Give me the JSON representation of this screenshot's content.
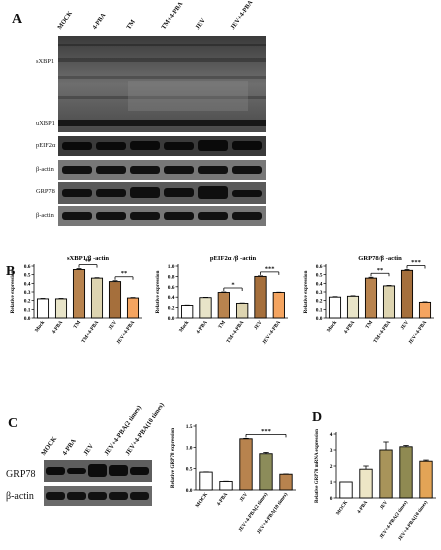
{
  "panels": {
    "A": {
      "letter": "A",
      "lanes": [
        "MOCK",
        "4-PBA",
        "TM",
        "TM+4-PBA",
        "JEV",
        "JEV+4-PBA"
      ],
      "blot_labels": [
        "sXBP1",
        "uXBP1",
        "pEIF2α",
        "β-actin",
        "GRP78",
        "β-actin"
      ]
    },
    "B": {
      "letter": "B"
    },
    "C": {
      "letter": "C",
      "lanes": [
        "MOCK",
        "4-PBA",
        "JEV",
        "JEV+4-PBA(2 times)",
        "JEV+4-PBA(10 times)"
      ],
      "blot_labels": [
        "GRP78",
        "β-actin"
      ]
    },
    "D": {
      "letter": "D"
    }
  },
  "chart_data": [
    {
      "id": "B1",
      "type": "bar",
      "title": "sXBP1/β -actin",
      "ylabel": "Relative expression",
      "categories": [
        "Mock",
        "4-PBA",
        "TM",
        "TM+4-PBA",
        "JEV",
        "JEV+4-PBA"
      ],
      "values": [
        0.22,
        0.22,
        0.56,
        0.46,
        0.42,
        0.23
      ],
      "errors": [
        0.005,
        0.005,
        0.01,
        0.005,
        0.01,
        0.005
      ],
      "ylim": [
        0.0,
        0.6
      ],
      "yticks": [
        "0.0",
        "0.1",
        "0.2",
        "0.3",
        "0.4",
        "0.5",
        "0.6"
      ],
      "significance": [
        {
          "from": 2,
          "to": 3,
          "label": "**"
        },
        {
          "from": 4,
          "to": 5,
          "label": "**"
        }
      ]
    },
    {
      "id": "B2",
      "type": "bar",
      "title": "pEIF2α /β -actin",
      "ylabel": "Relative expression",
      "categories": [
        "Mock",
        "4-PBA",
        "TM",
        "TM+4-PBA",
        "JEV",
        "JEV+4-PBA"
      ],
      "values": [
        0.24,
        0.39,
        0.49,
        0.28,
        0.8,
        0.49
      ],
      "errors": [
        0.005,
        0.005,
        0.01,
        0.005,
        0.01,
        0.005
      ],
      "ylim": [
        0.0,
        1.0
      ],
      "yticks": [
        "0.0",
        "0.2",
        "0.4",
        "0.6",
        "0.8",
        "1.0"
      ],
      "significance": [
        {
          "from": 2,
          "to": 3,
          "label": "*"
        },
        {
          "from": 4,
          "to": 5,
          "label": "***"
        }
      ]
    },
    {
      "id": "B3",
      "type": "bar",
      "title": "GRP78/β -actin",
      "ylabel": "Relative expression",
      "categories": [
        "Mock",
        "4-PBA",
        "TM",
        "TM+4-PBA",
        "JEV",
        "JEV+4-PBA"
      ],
      "values": [
        0.24,
        0.25,
        0.46,
        0.37,
        0.55,
        0.18
      ],
      "errors": [
        0.005,
        0.005,
        0.01,
        0.005,
        0.01,
        0.005
      ],
      "ylim": [
        0.0,
        0.6
      ],
      "yticks": [
        "0.0",
        "0.1",
        "0.2",
        "0.3",
        "0.4",
        "0.5",
        "0.6"
      ],
      "significance": [
        {
          "from": 2,
          "to": 3,
          "label": "**"
        },
        {
          "from": 4,
          "to": 5,
          "label": "***"
        }
      ]
    },
    {
      "id": "C",
      "type": "bar",
      "title": "",
      "ylabel": "Relative GRP78 expression",
      "categories": [
        "MOCK",
        "4-PBA",
        "JEV",
        "JEV+4-PBA(2 times)",
        "JEV+4-PBA(10 times)"
      ],
      "values": [
        0.42,
        0.2,
        1.2,
        0.85,
        0.37
      ],
      "errors": [
        0.005,
        0.005,
        0.01,
        0.03,
        0.005
      ],
      "ylim": [
        0.0,
        1.5
      ],
      "yticks": [
        "0.0",
        "0.5",
        "1.0",
        "1.5"
      ],
      "significance": [
        {
          "from": 2,
          "to": 4,
          "label": "***"
        }
      ]
    },
    {
      "id": "D",
      "type": "bar",
      "title": "",
      "ylabel": "Relative GRP78 mRNA expression",
      "categories": [
        "MOCK",
        "4-PBA",
        "JEV",
        "JEV+4-PBA(2 times)",
        "JEV+4-PBA(10 times)"
      ],
      "values": [
        1.0,
        1.8,
        3.0,
        3.2,
        2.3
      ],
      "errors": [
        0.0,
        0.2,
        0.5,
        0.08,
        0.07
      ],
      "ylim": [
        0,
        4
      ],
      "yticks": [
        "0",
        "1",
        "2",
        "3",
        "4"
      ],
      "significance": []
    }
  ],
  "colors": {
    "white": "#ffffff",
    "beige": "#e8e4c8",
    "brown": "#b8834e",
    "tan": "#ddd4b0",
    "darkbrown": "#a56f3c",
    "orange": "#f4a460",
    "gray": "#c0c0c0",
    "olive": "#a8a86a",
    "darkolive": "#8f8f4e",
    "tanorange": "#d9a05a"
  }
}
